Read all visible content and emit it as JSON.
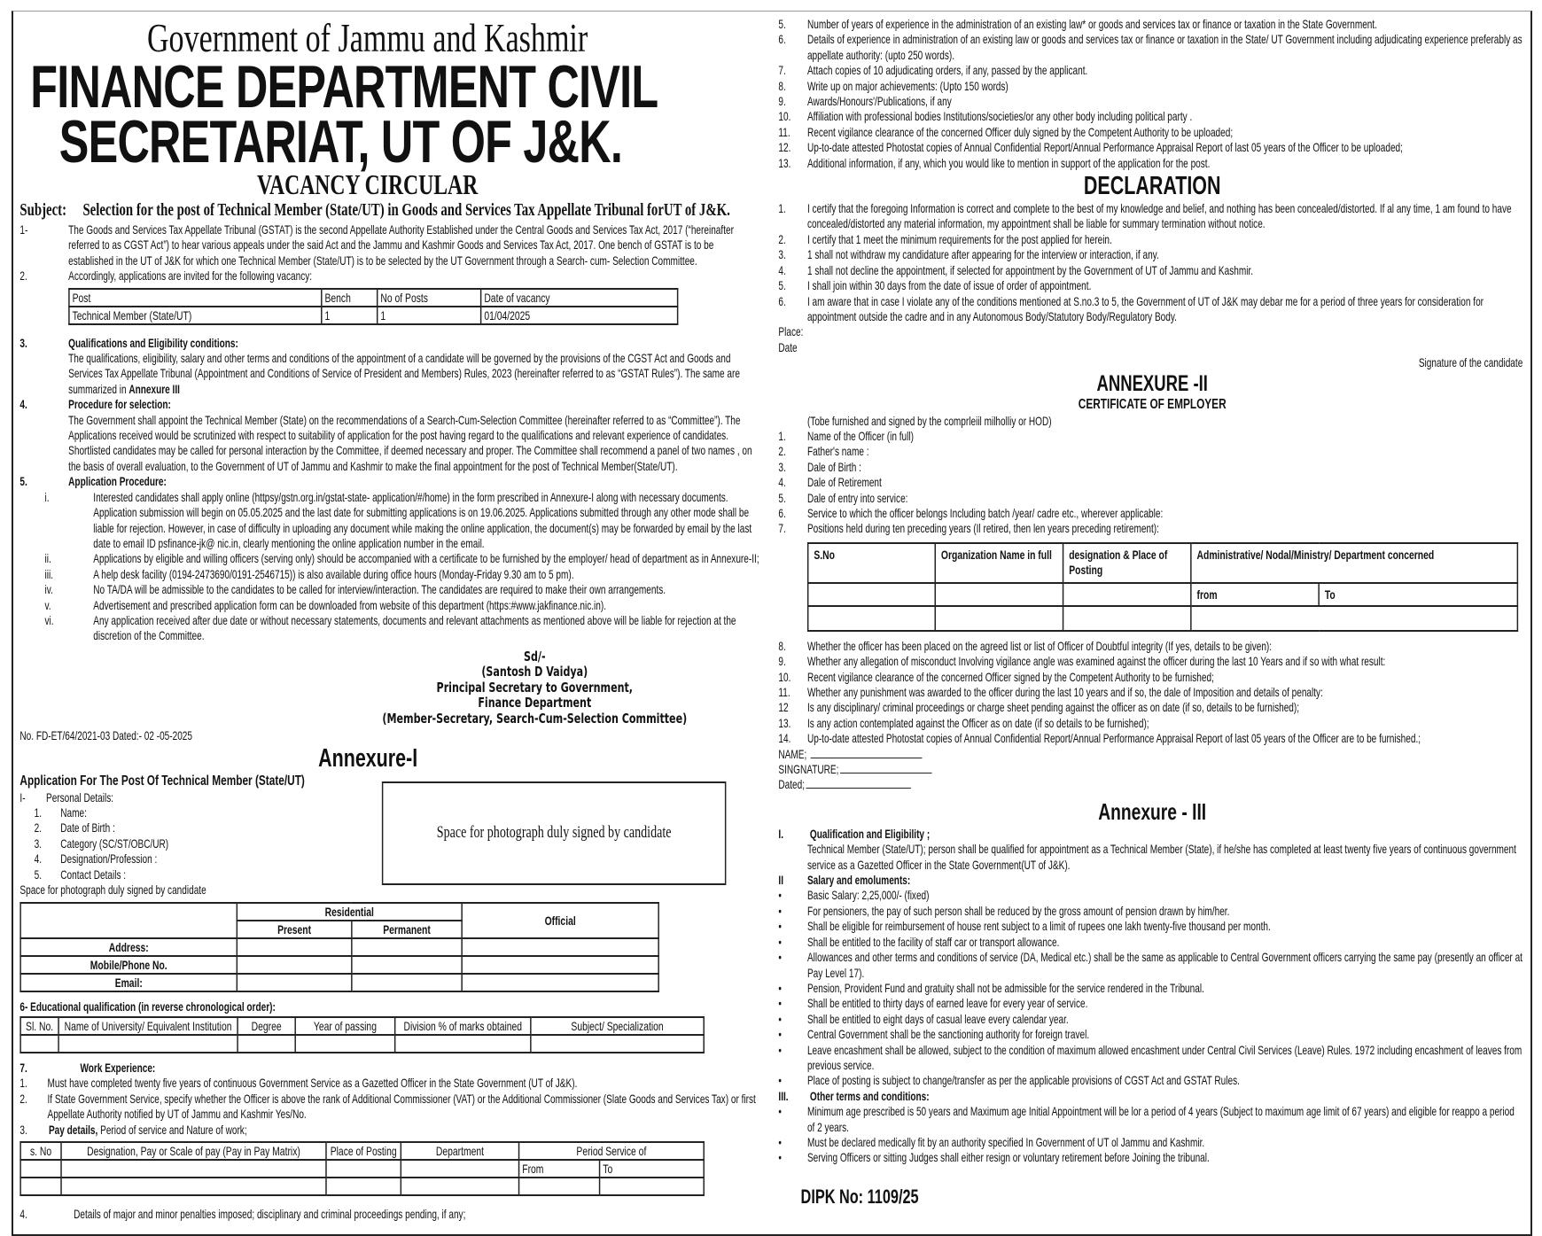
{
  "header": {
    "gov": "Government of Jammu and Kashmir",
    "title1": "FINANCE DEPARTMENT CIVIL",
    "title2": "SECRETARIAT, UT OF J&K.",
    "circular": "VACANCY CIRCULAR",
    "subject_label": "Subject:",
    "subject": "Selection for the post of Technical Member (State/UT) in Goods and Services Tax Appellate Tribunal forUT of J&K."
  },
  "intro": [
    {
      "n": "1-",
      "t": "The Goods and Services Tax Appellate Tribunal (GSTAT) is the second Appellate Authority Established under the Central Goods and Services Tax Act, 2017 (“hereinafter referred to as CGST Act”) to hear various appeals under the said Act and the Jammu and Kashmir Goods and Services Tax Act, 2017. One bench of GSTAT is to be established in the UT of J&K for which one Technical Member (State/UT) is to be selected by the UT Government through a Search- cum- Selection Committee."
    },
    {
      "n": "2.",
      "t": "Accordingly, applications are invited for the following vacancy:"
    }
  ],
  "vacancy_table": {
    "headers": [
      "Post",
      "Bench",
      "No of Posts",
      "Date of vacancy"
    ],
    "row": [
      "Technical Member (State/UT)",
      "1",
      "1",
      "01/04/2025"
    ]
  },
  "sections": [
    {
      "n": "3.",
      "h": "Qualifications and Eligibility conditions:",
      "t": "The qualifications, eligibility, salary and other terms and conditions of the appointment of a candidate will be governed by the provisions of the CGST Act and Goods and Services Tax Appellate Tribunal (Appointment and Conditions of Service of President and Members) Rules, 2023 (hereinafter referred to as “GSTAT Rules”). The same are summarized in ",
      "tb": "Annexure III"
    },
    {
      "n": "4.",
      "h": "Procedure for selection:",
      "t": "The Government shall appoint the Technical Member (State) on the recommendations of a Search-Cum-Selection Committee (hereinafter referred to as “Committee”). The Applications received would be scrutinized with respect to suitability of application for the post having regard to the qualifications and relevant experience of candidates. Shortlisted candidates may be called for personal interaction by the Committee, if deemed necessary and proper. The Committee shall recommend a panel of two names , on the basis of overall evaluation, to the Government of UT of Jammu and Kashmir to make the final appointment for the post of Technical Member(State/UT)."
    },
    {
      "n": "5.",
      "h": "Application Procedure:",
      "t": ""
    }
  ],
  "procedure": [
    {
      "n": "i.",
      "t": "Interested candidates shall apply online (httpsy/gstn.org.in/gstat-state- application/#/home) in the form prescribed in Annexure-I along with necessary documents. Application submission will begin on 05.05.2025 and the last date for submitting applications is on 19.06.2025. Applications submitted through any other mode shall be liable for rejection. However, in case of difficulty in uploading any document while making the online application, the document(s) may be forwarded by email by the last date to email ID psfinance-jk@ nic.in, clearly mentioning the online application number in the email."
    },
    {
      "n": "ii.",
      "t": "Applications by eligible and willing officers (serving only) should be accompanied with a certificate to be furnished by the employer/ head of department as in Annexure-II;"
    },
    {
      "n": "iii.",
      "t": "A help desk facility (0194-2473690/0191-2546715)) is also available during office hours (Monday-Friday 9.30 am to 5 pm)."
    },
    {
      "n": "iv.",
      "t": "No TA/DA will be admissible to the candidates to be called for interview/interaction. The candidates are required to make their own arrangements."
    },
    {
      "n": "v.",
      "t": "Advertisement and prescribed application form can be downloaded from website of this department (https:#www.jakfinance.nic.in)."
    },
    {
      "n": "vi.",
      "t": "Any application received after due date or without necessary statements, documents and relevant attachments as mentioned above will be liable for rejection at the discretion of the Committee."
    }
  ],
  "signature": {
    "sd": "Sd/-",
    "name": "(Santosh D Vaidya)",
    "designation": "Principal Secretary to Government,",
    "dept": "Finance Department",
    "role": "(Member-Secretary, Search-Cum-Selection Committee)"
  },
  "ref_no": "No. FD-ET/64/2021-03 Dated:- 02 -05-2025",
  "annexure1": {
    "title": "Annexure-I",
    "heading": "Application For The Post Of Technical Member (State/UT)",
    "personal_label_n": "I-",
    "personal_label": "Personal Details:",
    "personal": [
      {
        "n": "1.",
        "t": "Name:"
      },
      {
        "n": "2.",
        "t": "Date of Birth :"
      },
      {
        "n": "3.",
        "t": "Category (SC/ST/OBC/UR)"
      },
      {
        "n": "4.",
        "t": "Designation/Profession :"
      },
      {
        "n": "5.",
        "t": "Contact Details :"
      }
    ],
    "photo_note": "Space for photograph duly signed by candidate",
    "photo_box": "Space for photograph duly signed by candidate",
    "address_table": {
      "residential": "Residential",
      "present": "Present",
      "permanent": "Permanent",
      "official": "Official",
      "rows": [
        "Address:",
        "Mobile/Phone No.",
        "Email:"
      ]
    },
    "edu_label": "6- Educational qualification (in reverse chronological order):",
    "edu_headers": [
      "Sl. No.",
      "Name of University/ Equivalent Institution",
      "Degree",
      "Year of passing",
      "Division % of marks obtained",
      "Subject/ Specialization"
    ],
    "work_n": "7.",
    "work_label": "Work Experience:",
    "work": [
      {
        "n": "1.",
        "t": "Must have completed twenty five years of continuous Government Service as a Gazetted Officer in the State Government (UT of J&K)."
      },
      {
        "n": "2.",
        "t": "If State Government Service, specify whether the Officer is above the rank of Additional Commissioner (VAT) or the Additional Commissioner (Slate Goods and Services Tax) or first Appellate Authority notified by UT of Jammu and Kashmir Yes/No."
      }
    ],
    "pay_n": "3.",
    "pay_b": "Pay details,",
    "pay_t": " Period of service and Nature of work;",
    "pay_headers": [
      "s. No",
      "Designation, Pay or Scale of pay (Pay in Pay Matrix)",
      "Place of Posting",
      "Department",
      "Period Service of",
      "From",
      "To"
    ],
    "penalty_n": "4.",
    "penalty": "Details of major and minor penalties imposed; disciplinary and criminal proceedings pending, if any;"
  },
  "right_items": [
    {
      "n": "5.",
      "t": "Number of years of experience in the administration of an existing law* or goods and services tax or finance or taxation in the State Government."
    },
    {
      "n": "6.",
      "t": "Details of experience in administration of an existing law or goods and services tax or finance or taxation in the State/ UT Government including adjudicating experience preferably as appellate authority: (upto 250 words)."
    },
    {
      "n": "7.",
      "t": "Attach copies of 10 adjudicating orders, if any, passed by the applicant."
    },
    {
      "n": "8.",
      "t": "Write up on major achievements: (Upto 150 words)"
    },
    {
      "n": "9.",
      "t": "Awards/Honours'/Publications, if any"
    },
    {
      "n": "10.",
      "t": "Affiliation with professional bodies Institutions/societies/or any other body including political party ."
    },
    {
      "n": "11.",
      "t": "Recent vigilance clearance of the concerned Officer duly signed by the Competent Authority to be uploaded;"
    },
    {
      "n": "12.",
      "t": "Up-to-date attested Photostat copies of Annual Confidential Report/Annual Performance Appraisal Report of last 05 years of the Officer to be uploaded;"
    },
    {
      "n": "13.",
      "t": "Additional information, if any, which you would like to mention in support of the application for the post."
    }
  ],
  "declaration": {
    "title": "DECLARATION",
    "items": [
      {
        "n": "1.",
        "t": "I certify that the foregoing Information is correct and complete to the best of my knowledge and belief, and nothing has been concealed/distorted. If al any time, 1 am found to have concealed/distorted any material information, my appointment shall be liable for summary termination without notice."
      },
      {
        "n": "2.",
        "t": "I certify that 1 meet the minimum requirements for the post applied for herein."
      },
      {
        "n": "3.",
        "t": "1 shall not withdraw my candidature after appearing for the interview or interaction, if any."
      },
      {
        "n": "4.",
        "t": "1 shall not decline the appointment, if selected for appointment by the Government of UT of Jammu and Kashmir."
      },
      {
        "n": "5.",
        "t": "I shall join within 30 days from the date of issue of order of appointment."
      },
      {
        "n": "6.",
        "t": "I am aware that in case I violate any of the conditions mentioned at S.no.3 to 5, the Government of UT of J&K may debar me for a period of three years for consideration for appointment outside the cadre and in any Autonomous Body/Statutory Body/Regulatory Body."
      }
    ],
    "place": "Place:",
    "date": "Date",
    "signature": "Signature of the candidate"
  },
  "annexure2": {
    "title": "ANNEXURE -II",
    "subtitle": "CERTIFICATE OF EMPLOYER",
    "note": "(Tobe furnished and signed by the comprleiil milholliy or HOD)",
    "items": [
      {
        "n": "1.",
        "t": "Name of the Officer (in full)"
      },
      {
        "n": "2.",
        "t": "Father's name :"
      },
      {
        "n": "3.",
        "t": "Dale of Birth :"
      },
      {
        "n": "4.",
        "t": "Dale of Retirement"
      },
      {
        "n": "5.",
        "t": "Dale of entry into service:"
      },
      {
        "n": "6.",
        "t": "Service to which the officer belongs Including batch /year/ cadre etc., wherever applicable:"
      },
      {
        "n": "7.",
        "t": "Positions held during ten preceding years (Il retired, then len years preceding retirement):"
      }
    ],
    "table_headers": [
      "S.No",
      "Organization Name in full",
      "designation & Place of Posting",
      "Administrative/ Nodal/Ministry/ Department concerned",
      "from",
      "To"
    ],
    "items2": [
      {
        "n": "8.",
        "t": "Whether the officer has been placed on the agreed list or list of Officer of Doubtful integrity (If yes, details to be given):"
      },
      {
        "n": "9.",
        "t": "Whether any allegation of misconduct Involving vigilance angle was examined against the officer during the last 10 Years and if so with what result:"
      },
      {
        "n": "10.",
        "t": "Recent vigilance clearance of the concerned Officer signed by the Competent Authority to be furnished;"
      },
      {
        "n": "11.",
        "t": "Whether any punishment was awarded to the officer during the last 10 years and if so, the dale of Imposition and details of penalty:"
      },
      {
        "n": "12",
        "t": "Is any disciplinary/ criminal proceedings or charge sheet pending against the officer as on date (if so, details to be furnished);"
      },
      {
        "n": "13.",
        "t": "Is any action contemplated against the Officer as on date (if so details to be furnished);"
      },
      {
        "n": "14.",
        "t": "Up-to-date attested Photostat copies of Annual Confidential Report/Annual Performance Appraisal Report of last 05 years of the Officer are to be furnished.;"
      }
    ],
    "name": "NAME;",
    "sign": "SINGNATURE;",
    "dated": "Dated;"
  },
  "annexure3": {
    "title": "Annexure - III",
    "s1_n": "I.",
    "s1": "Qualification and Eligibility ;",
    "s1_t": "Technical Member (State/UT); person shall be qualified for appointment as a Technical Member (State), if he/she has completed at least twenty five years of continuous government service as a Gazetted Officer in the State Government(UT of J&K).",
    "s2_n": "II",
    "s2": "Salary and emoluments:",
    "s2_items": [
      {
        "n": "•",
        "t": "Basic Salary: 2,25,000/- (fixed)"
      },
      {
        "n": "•",
        "t": "For pensioners, the pay of such person shall be reduced by the gross amount of pension drawn by him/her."
      },
      {
        "n": "•",
        "t": "Shall be eligible for reimbursement of house rent subject to a limit of rupees one lakh twenty-five thousand per month."
      },
      {
        "n": "•",
        "t": "Shall be entitled to the facility of staff car or transport allowance."
      },
      {
        "n": "•",
        "t": "Allowances and other terms and conditions of service (DA, Medical etc.) shall be the same as applicable to Central Government officers carrying the same pay (presently an officer at Pay Level 17)."
      },
      {
        "n": "•",
        "t": "Pension, Provident Fund and gratuity shall not be admissible for the service rendered in the Tribunal."
      },
      {
        "n": "•",
        "t": "Shall be entitled to thirty days of earned leave for every year of service."
      },
      {
        "n": "•",
        "t": "Shall be entitled to eight days of casual leave every calendar year."
      },
      {
        "n": "•",
        "t": "Central Government shall be the sanctioning authority for foreign travel."
      },
      {
        "n": "•",
        "t": "Leave encashment shall be allowed, subject to the condition of maximum allowed encashment under Central Civil Services (Leave) Rules. 1972 including encashment of leaves from previous service."
      },
      {
        "n": "•",
        "t": "Place of posting is subject to change/transfer as per the applicable provisions of CGST Act and GSTAT Rules."
      }
    ],
    "s3_n": "III.",
    "s3": "Other terms and conditions:",
    "s3_items": [
      {
        "n": "•",
        "t": "Minimum age prescribed is 50 years and Maximum age Initial Appointment will be lor a period of 4 years (Subject to  maximum age limit of 67 years) and eligible for reappo a period of 2 years."
      },
      {
        "n": "•",
        "t": "Must be declared medically fit by an authority specified In Government of UT ol Jammu and Kashmir."
      },
      {
        "n": "•",
        "t": "Serving Officers or sitting Judges shall either resign or voluntary retirement before Joining the tribunal."
      }
    ]
  },
  "dipk": "DIPK No: 1109/25"
}
